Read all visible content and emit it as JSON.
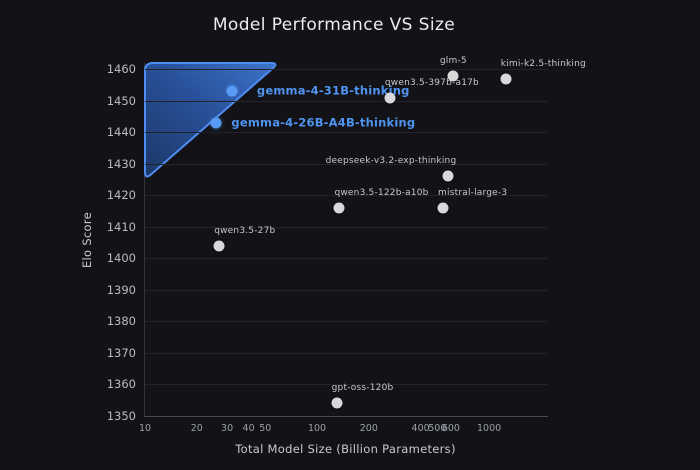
{
  "title": "Model Performance VS Size",
  "axes": {
    "y_label": "Elo Score",
    "x_label": "Total Model Size (Billion Parameters)"
  },
  "colors": {
    "background": "#131317",
    "title_text": "#ececf0",
    "grid": "#232329",
    "tick_text": "#9aa0a8",
    "point_gray": "#d8d8da",
    "point_blue": "#589bf4",
    "label_blue": "#4f93f0",
    "triangle_stroke": "#4f8df2",
    "triangle_fill_dark": "#1c3a6e",
    "triangle_fill_light": "#4079d4"
  },
  "chart_data": {
    "type": "scatter",
    "title": "Model Performance VS Size",
    "xlabel": "Total Model Size (Billion Parameters)",
    "ylabel": "Elo Score",
    "x_scale": "log",
    "x_domain": [
      10,
      2200
    ],
    "y_domain": [
      1350,
      1462
    ],
    "grid": "horizontal-only",
    "legend": "none",
    "y_ticks": [
      1460,
      1450,
      1440,
      1430,
      1420,
      1410,
      1400,
      1390,
      1380,
      1370,
      1360,
      1350
    ],
    "x_ticks": [
      10,
      20,
      30,
      40,
      50,
      100,
      200,
      400,
      500,
      600,
      1000
    ],
    "points": [
      {
        "name": "gemma-4-31B-thinking",
        "size_b": 32,
        "elo": 1453,
        "style": "blue",
        "label_side": "right-far"
      },
      {
        "name": "gemma-4-26B-A4B-thinking",
        "size_b": 26,
        "elo": 1443,
        "style": "blue",
        "label_side": "right"
      },
      {
        "name": "glm-5",
        "size_b": 620,
        "elo": 1458,
        "style": "gray",
        "label_side": "above"
      },
      {
        "name": "kimi-k2.5-thinking",
        "size_b": 1250,
        "elo": 1457,
        "style": "gray",
        "label_side": "above-right"
      },
      {
        "name": "qwen3.5-397b-a17b",
        "size_b": 265,
        "elo": 1451,
        "style": "gray",
        "label_side": "above-right"
      },
      {
        "name": "deepseek-v3.2-exp-thinking",
        "size_b": 580,
        "elo": 1426,
        "style": "gray",
        "label_side": "above-left"
      },
      {
        "name": "qwen3.5-122b-a10b",
        "size_b": 135,
        "elo": 1416,
        "style": "gray",
        "label_side": "above-right"
      },
      {
        "name": "mistral-large-3",
        "size_b": 540,
        "elo": 1416,
        "style": "gray",
        "label_side": "above-right"
      },
      {
        "name": "qwen3.5-27b",
        "size_b": 27,
        "elo": 1404,
        "style": "gray",
        "label_side": "above-right"
      },
      {
        "name": "gpt-oss-120b",
        "size_b": 130,
        "elo": 1354,
        "style": "gray",
        "label_side": "above-right"
      }
    ],
    "highlight_region": {
      "shape": "triangle",
      "description": "highlight of small high-performing models",
      "vertices": [
        {
          "size_b": 10,
          "elo": 1462
        },
        {
          "size_b": 60,
          "elo": 1462
        },
        {
          "size_b": 10,
          "elo": 1425
        }
      ],
      "corner_radius": 8
    }
  }
}
